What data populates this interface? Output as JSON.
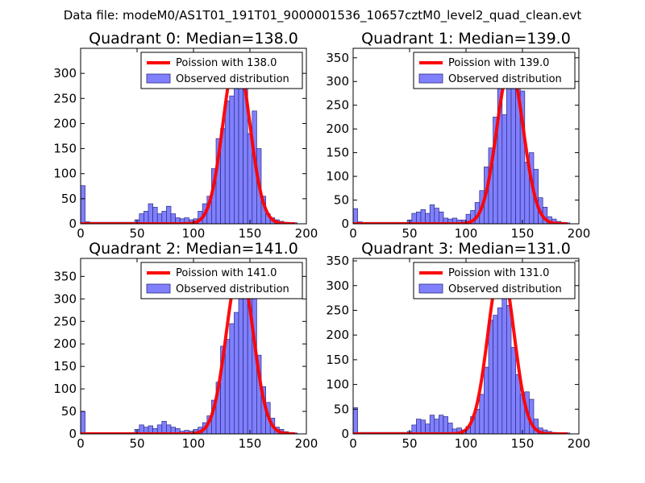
{
  "figure_title": "Data file: modeM0/AS1T01_191T01_9000001536_10657cztM0_level2_quad_clean.evt",
  "colors": {
    "bar_fill": "#8080ff",
    "bar_edge": "#2a2a80",
    "fit_line": "#ff0000",
    "axis": "#000000"
  },
  "chart_data": [
    {
      "type": "bar",
      "title": "Quadrant 0: Median=138.0",
      "xlabel": "",
      "ylabel": "",
      "xlim": [
        0,
        200
      ],
      "ylim": [
        0,
        350
      ],
      "xticks": [
        0,
        50,
        100,
        150,
        200
      ],
      "yticks": [
        0,
        50,
        100,
        150,
        200,
        250,
        300
      ],
      "bin_width": 4,
      "bins": [
        0,
        4,
        8,
        12,
        16,
        20,
        24,
        28,
        32,
        36,
        40,
        44,
        48,
        52,
        56,
        60,
        64,
        68,
        72,
        76,
        80,
        84,
        88,
        92,
        96,
        100,
        104,
        108,
        112,
        116,
        120,
        124,
        128,
        132,
        136,
        140,
        144,
        148,
        152,
        156,
        160,
        164,
        168,
        172,
        176,
        180,
        184,
        188
      ],
      "values": [
        76,
        4,
        3,
        3,
        3,
        3,
        3,
        3,
        3,
        3,
        3,
        3,
        8,
        20,
        25,
        40,
        33,
        20,
        25,
        35,
        20,
        12,
        10,
        12,
        8,
        10,
        25,
        40,
        55,
        110,
        170,
        190,
        245,
        255,
        295,
        315,
        300,
        180,
        225,
        150,
        55,
        20,
        12,
        8,
        5,
        3,
        2,
        2
      ],
      "legend": {
        "position": "upper-right",
        "line_label": "Poission with 138.0",
        "bar_label": "Observed distribution"
      },
      "poisson_mean": 138.0,
      "poisson_peak": 335
    },
    {
      "type": "bar",
      "title": "Quadrant 1: Median=139.0",
      "xlabel": "",
      "ylabel": "",
      "xlim": [
        0,
        200
      ],
      "ylim": [
        0,
        370
      ],
      "xticks": [
        0,
        50,
        100,
        150,
        200
      ],
      "yticks": [
        0,
        50,
        100,
        150,
        200,
        250,
        300,
        350
      ],
      "bin_width": 4,
      "bins": [
        0,
        4,
        8,
        12,
        16,
        20,
        24,
        28,
        32,
        36,
        40,
        44,
        48,
        52,
        56,
        60,
        64,
        68,
        72,
        76,
        80,
        84,
        88,
        92,
        96,
        100,
        104,
        108,
        112,
        116,
        120,
        124,
        128,
        132,
        136,
        140,
        144,
        148,
        152,
        156,
        160,
        164,
        168,
        172,
        176,
        180,
        184,
        188
      ],
      "values": [
        32,
        4,
        3,
        3,
        3,
        3,
        3,
        3,
        3,
        3,
        3,
        3,
        8,
        22,
        25,
        30,
        22,
        40,
        33,
        25,
        12,
        10,
        12,
        8,
        8,
        20,
        28,
        45,
        70,
        120,
        160,
        225,
        300,
        230,
        325,
        350,
        340,
        280,
        130,
        150,
        115,
        55,
        35,
        15,
        10,
        5,
        3,
        2
      ],
      "legend": {
        "position": "upper-right",
        "line_label": "Poission with 139.0",
        "bar_label": "Observed distribution"
      },
      "poisson_mean": 139.0,
      "poisson_peak": 330
    },
    {
      "type": "bar",
      "title": "Quadrant 2: Median=141.0",
      "xlabel": "",
      "ylabel": "",
      "xlim": [
        0,
        200
      ],
      "ylim": [
        0,
        390
      ],
      "xticks": [
        0,
        50,
        100,
        150,
        200
      ],
      "yticks": [
        0,
        50,
        100,
        150,
        200,
        250,
        300,
        350
      ],
      "bin_width": 4,
      "bins": [
        0,
        4,
        8,
        12,
        16,
        20,
        24,
        28,
        32,
        36,
        40,
        44,
        48,
        52,
        56,
        60,
        64,
        68,
        72,
        76,
        80,
        84,
        88,
        92,
        96,
        100,
        104,
        108,
        112,
        116,
        120,
        124,
        128,
        132,
        136,
        140,
        144,
        148,
        152,
        156,
        160,
        164,
        168,
        172,
        176,
        180,
        184,
        188
      ],
      "values": [
        50,
        3,
        3,
        3,
        3,
        3,
        3,
        3,
        3,
        3,
        3,
        3,
        10,
        20,
        15,
        18,
        12,
        20,
        28,
        20,
        15,
        12,
        6,
        8,
        6,
        10,
        15,
        25,
        40,
        75,
        115,
        195,
        210,
        245,
        270,
        300,
        345,
        300,
        315,
        175,
        105,
        70,
        35,
        15,
        10,
        5,
        3,
        2
      ],
      "legend": {
        "position": "upper-right",
        "line_label": "Poission with 141.0",
        "bar_label": "Observed distribution"
      },
      "poisson_mean": 141.0,
      "poisson_peak": 372
    },
    {
      "type": "bar",
      "title": "Quadrant 3: Median=131.0",
      "xlabel": "",
      "ylabel": "",
      "xlim": [
        0,
        200
      ],
      "ylim": [
        0,
        355
      ],
      "xticks": [
        0,
        50,
        100,
        150,
        200
      ],
      "yticks": [
        0,
        50,
        100,
        150,
        200,
        250,
        300,
        350
      ],
      "bin_width": 4,
      "bins": [
        0,
        4,
        8,
        12,
        16,
        20,
        24,
        28,
        32,
        36,
        40,
        44,
        48,
        52,
        56,
        60,
        64,
        68,
        72,
        76,
        80,
        84,
        88,
        92,
        96,
        100,
        104,
        108,
        112,
        116,
        120,
        124,
        128,
        132,
        136,
        140,
        144,
        148,
        152,
        156,
        160,
        164,
        168,
        172,
        176,
        180,
        184,
        188
      ],
      "values": [
        53,
        3,
        3,
        3,
        3,
        3,
        3,
        3,
        3,
        3,
        3,
        3,
        5,
        18,
        30,
        28,
        20,
        38,
        30,
        38,
        35,
        22,
        10,
        12,
        8,
        15,
        35,
        50,
        80,
        135,
        230,
        240,
        255,
        310,
        260,
        175,
        120,
        80,
        85,
        70,
        30,
        12,
        8,
        5,
        3,
        2,
        2,
        2
      ],
      "legend": {
        "position": "upper-right",
        "line_label": "Poission with 131.0",
        "bar_label": "Observed distribution"
      },
      "poisson_mean": 131.0,
      "poisson_peak": 340
    }
  ]
}
